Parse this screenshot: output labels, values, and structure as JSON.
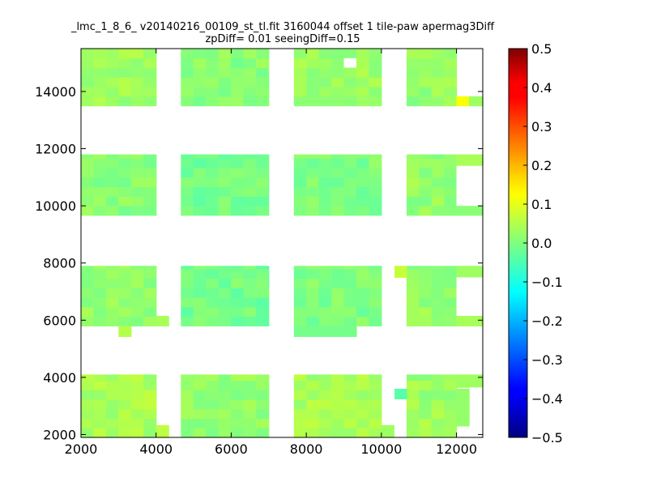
{
  "chart_data": {
    "type": "heatmap",
    "title": "_lmc_1_8_6_ v20140216_00109_st_tl.fit 3160044 offset 1 tile-paw apermag3Diff",
    "subtitle": "zpDiff= 0.01 seeingDiff=0.15",
    "xlabel": "",
    "ylabel": "",
    "xlim": [
      2000,
      12700
    ],
    "ylim": [
      1900,
      15500
    ],
    "x_ticks": [
      "2000",
      "4000",
      "6000",
      "8000",
      "10000",
      "12000"
    ],
    "y_ticks": [
      "2000",
      "4000",
      "6000",
      "8000",
      "10000",
      "12000",
      "14000"
    ],
    "grid": false,
    "colorbar": {
      "colormap": "jet",
      "range": [
        -0.5,
        0.5
      ],
      "ticks": [
        "0.5",
        "0.4",
        "0.3",
        "0.2",
        "0.1",
        "0.0",
        "−0.1",
        "−0.2",
        "−0.3",
        "−0.4",
        "−0.5"
      ]
    },
    "cell_size": [
      333,
      333
    ],
    "blocks": [
      {
        "x": [
          2000,
          4000
        ],
        "y": [
          13500,
          15500
        ],
        "base": 0.03
      },
      {
        "x": [
          4660,
          7000
        ],
        "y": [
          13500,
          15500
        ],
        "base": 0.01
      },
      {
        "x": [
          7670,
          10000
        ],
        "y": [
          13500,
          15500
        ],
        "base": 0.03
      },
      {
        "x": [
          10670,
          12000
        ],
        "y": [
          13500,
          15500
        ],
        "base": 0.02
      },
      {
        "x": [
          2000,
          4000
        ],
        "y": [
          9670,
          11800
        ],
        "base": 0.01
      },
      {
        "x": [
          4660,
          7000
        ],
        "y": [
          9670,
          11800
        ],
        "base": -0.01
      },
      {
        "x": [
          7670,
          10000
        ],
        "y": [
          9670,
          11800
        ],
        "base": 0.0
      },
      {
        "x": [
          10670,
          12000
        ],
        "y": [
          9670,
          11800
        ],
        "base": 0.02
      },
      {
        "x": [
          2000,
          4000
        ],
        "y": [
          5800,
          7900
        ],
        "base": 0.02
      },
      {
        "x": [
          4660,
          7000
        ],
        "y": [
          5800,
          7900
        ],
        "base": -0.01
      },
      {
        "x": [
          7670,
          10000
        ],
        "y": [
          5800,
          7900
        ],
        "base": 0.0
      },
      {
        "x": [
          10670,
          12000
        ],
        "y": [
          5800,
          7900
        ],
        "base": 0.02
      },
      {
        "x": [
          2000,
          4000
        ],
        "y": [
          1900,
          4100
        ],
        "base": 0.04
      },
      {
        "x": [
          4660,
          7000
        ],
        "y": [
          1900,
          4100
        ],
        "base": 0.02
      },
      {
        "x": [
          7670,
          10000
        ],
        "y": [
          1900,
          4100
        ],
        "base": 0.04
      },
      {
        "x": [
          10670,
          12000
        ],
        "y": [
          1900,
          4100
        ],
        "base": 0.03
      }
    ],
    "extra_cells": [
      {
        "x": [
          12000,
          12333
        ],
        "y": [
          13500,
          13833
        ],
        "value": 0.12
      },
      {
        "x": [
          12333,
          12700
        ],
        "y": [
          13500,
          13833
        ],
        "value": 0.03
      },
      {
        "x": [
          12000,
          12700
        ],
        "y": [
          11400,
          11800
        ],
        "value": 0.04
      },
      {
        "x": [
          12000,
          12700
        ],
        "y": [
          9670,
          10000
        ],
        "value": 0.01
      },
      {
        "x": [
          4000,
          4333
        ],
        "y": [
          5800,
          6150
        ],
        "value": 0.04
      },
      {
        "x": [
          3000,
          3333
        ],
        "y": [
          5430,
          5800
        ],
        "value": 0.05
      },
      {
        "x": [
          7670,
          9333
        ],
        "y": [
          5430,
          5800
        ],
        "value": -0.01
      },
      {
        "x": [
          12000,
          12700
        ],
        "y": [
          5800,
          6150
        ],
        "value": 0.04
      },
      {
        "x": [
          12000,
          12700
        ],
        "y": [
          7500,
          7900
        ],
        "value": 0.03
      },
      {
        "x": [
          10350,
          10670
        ],
        "y": [
          7500,
          7900
        ],
        "value": 0.07
      },
      {
        "x": [
          12000,
          12700
        ],
        "y": [
          3650,
          4100
        ],
        "value": 0.03
      },
      {
        "x": [
          10350,
          10670
        ],
        "y": [
          3250,
          3600
        ],
        "value": -0.04
      },
      {
        "x": [
          12000,
          12350
        ],
        "y": [
          2300,
          3600
        ],
        "value": 0.02
      },
      {
        "x": [
          4000,
          4333
        ],
        "y": [
          1900,
          2330
        ],
        "value": 0.06
      },
      {
        "x": [
          10000,
          10333
        ],
        "y": [
          1900,
          2330
        ],
        "value": 0.03
      }
    ],
    "holes": [
      {
        "x": [
          9000,
          9333
        ],
        "y": [
          14833,
          15166
        ]
      },
      {
        "x": [
          12000,
          12700
        ],
        "y": [
          10000,
          11400
        ]
      },
      {
        "x": [
          12000,
          12700
        ],
        "y": [
          6150,
          7500
        ]
      },
      {
        "x": [
          12350,
          12700
        ],
        "y": [
          1900,
          3650
        ]
      }
    ],
    "cell_overrides": [
      {
        "x": 12333,
        "y": 3666,
        "value": -0.06
      },
      {
        "x": 10666,
        "y": 2333,
        "value": -0.05
      },
      {
        "x": 11000,
        "y": 2000,
        "value": -0.05
      },
      {
        "x": 8666,
        "y": 2000,
        "value": -0.04
      },
      {
        "x": 9333,
        "y": 2333,
        "value": -0.05
      },
      {
        "x": 4666,
        "y": 5833,
        "value": -0.06
      },
      {
        "x": 9000,
        "y": 5500,
        "value": -0.05
      }
    ]
  }
}
